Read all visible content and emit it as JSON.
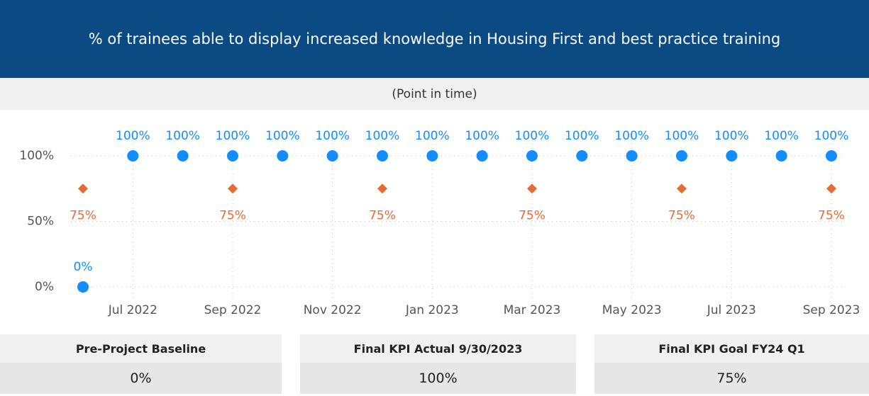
{
  "header": {
    "title": "% of trainees able to display increased knowledge in Housing First and best practice training",
    "subtitle": "(Point in time)"
  },
  "chart_data": {
    "type": "scatter",
    "categories": [
      null,
      "Jul 2022",
      null,
      "Sep 2022",
      null,
      "Nov 2022",
      null,
      "Jan 2023",
      null,
      "Mar 2023",
      null,
      "May 2023",
      null,
      "Jul 2023",
      null,
      "Sep 2023"
    ],
    "series": [
      {
        "color": "#118dff",
        "marker": "circle",
        "values": [
          0,
          100,
          100,
          100,
          100,
          100,
          100,
          100,
          100,
          100,
          100,
          100,
          100,
          100,
          100,
          100
        ],
        "value_labels": [
          "0%",
          "100%",
          "100%",
          "100%",
          "100%",
          "100%",
          "100%",
          "100%",
          "100%",
          "100%",
          "100%",
          "100%",
          "100%",
          "100%",
          "100%",
          "100%"
        ]
      },
      {
        "color": "#e66c37",
        "marker": "diamond",
        "values": [
          75,
          null,
          null,
          75,
          null,
          null,
          75,
          null,
          null,
          75,
          null,
          null,
          75,
          null,
          null,
          75
        ],
        "value_labels": [
          "75%",
          null,
          null,
          "75%",
          null,
          null,
          "75%",
          null,
          null,
          "75%",
          null,
          null,
          "75%",
          null,
          null,
          "75%"
        ]
      }
    ],
    "ylim": [
      0,
      100
    ],
    "yticks": [
      {
        "value": 0,
        "label": "0%"
      },
      {
        "value": 50,
        "label": "50%"
      },
      {
        "value": 100,
        "label": "100%"
      }
    ],
    "grid": true
  },
  "cards": [
    {
      "title": "Pre-Project Baseline",
      "value": "0%"
    },
    {
      "title": "Final KPI Actual 9/30/2023",
      "value": "100%"
    },
    {
      "title": "Final KPI Goal FY24 Q1",
      "value": "75%"
    }
  ]
}
